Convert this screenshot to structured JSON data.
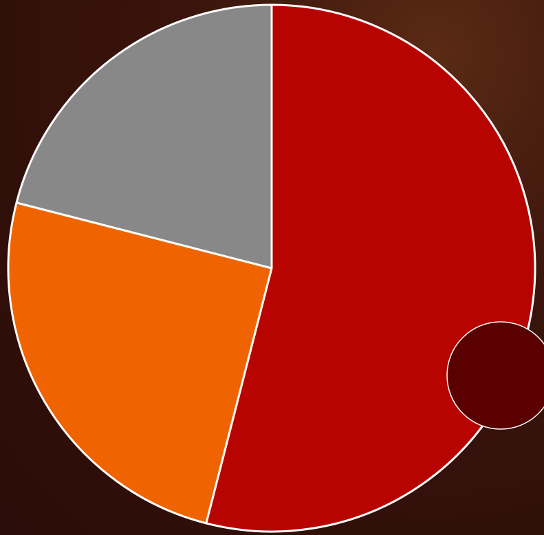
{
  "chart_data": {
    "type": "pie",
    "values": [
      54,
      25,
      21
    ],
    "colors": [
      "#b80400",
      "#ef6400",
      "#888888"
    ]
  }
}
